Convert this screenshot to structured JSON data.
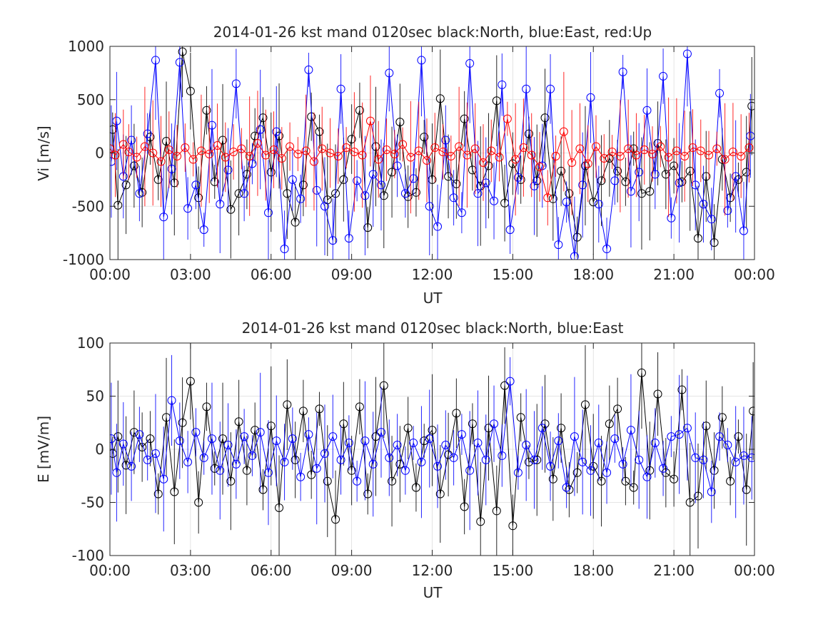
{
  "chart_data": [
    {
      "type": "line",
      "title": "2014-01-26 kst mand 0120sec black:North, blue:East, red:Up",
      "xlabel": "UT",
      "ylabel": "Vi [m/s]",
      "xlim": [
        0,
        24
      ],
      "ylim": [
        -1000,
        1000
      ],
      "xticks": [
        0,
        3,
        6,
        9,
        12,
        15,
        18,
        21,
        24
      ],
      "xtick_labels": [
        "00:00",
        "03:00",
        "06:00",
        "09:00",
        "12:00",
        "15:00",
        "18:00",
        "21:00",
        "00:00"
      ],
      "yticks": [
        1000,
        500,
        0,
        -500,
        -1000
      ],
      "ytick_labels": [
        "1000",
        "500",
        "0",
        "-500",
        "-1000"
      ],
      "grid": true,
      "legend": "none",
      "series": [
        {
          "color": "#000000",
          "marker": "circle",
          "x": [
            0.1,
            0.3,
            0.6,
            0.9,
            1.2,
            1.5,
            1.8,
            2.1,
            2.4,
            2.7,
            3.0,
            3.3,
            3.6,
            3.9,
            4.2,
            4.5,
            4.8,
            5.1,
            5.4,
            5.7,
            6.0,
            6.3,
            6.6,
            6.9,
            7.2,
            7.5,
            7.8,
            8.1,
            8.4,
            8.7,
            9.0,
            9.3,
            9.6,
            9.9,
            10.2,
            10.5,
            10.8,
            11.1,
            11.4,
            11.7,
            12.0,
            12.3,
            12.6,
            12.9,
            13.2,
            13.5,
            13.8,
            14.1,
            14.4,
            14.7,
            15.0,
            15.3,
            15.6,
            15.9,
            16.2,
            16.5,
            16.8,
            17.1,
            17.4,
            17.7,
            18.0,
            18.3,
            18.6,
            18.9,
            19.2,
            19.5,
            19.8,
            20.1,
            20.4,
            20.7,
            21.0,
            21.3,
            21.6,
            21.9,
            22.2,
            22.5,
            22.8,
            23.1,
            23.4,
            23.7,
            23.9
          ],
          "y": [
            220,
            -490,
            -300,
            -120,
            -370,
            150,
            -250,
            110,
            -280,
            950,
            580,
            -420,
            400,
            -270,
            120,
            -530,
            -380,
            -200,
            160,
            330,
            -180,
            160,
            -380,
            -650,
            -300,
            340,
            200,
            -440,
            -380,
            -250,
            130,
            400,
            -700,
            60,
            -400,
            -180,
            290,
            -410,
            -370,
            150,
            -250,
            510,
            -220,
            -290,
            320,
            -160,
            -310,
            -120,
            490,
            -470,
            -100,
            -250,
            180,
            -260,
            330,
            -430,
            -170,
            -380,
            -790,
            -120,
            -460,
            -260,
            -50,
            -170,
            -270,
            40,
            -380,
            -360,
            90,
            -200,
            -120,
            -270,
            -170,
            -800,
            -220,
            -840,
            -60,
            -420,
            -250,
            -180,
            440
          ]
        },
        {
          "color": "#0000ff",
          "marker": "circle",
          "x": [
            0.05,
            0.25,
            0.5,
            0.8,
            1.1,
            1.4,
            1.7,
            2.0,
            2.3,
            2.6,
            2.9,
            3.2,
            3.5,
            3.8,
            4.1,
            4.4,
            4.7,
            5.0,
            5.3,
            5.6,
            5.9,
            6.2,
            6.5,
            6.8,
            7.1,
            7.4,
            7.7,
            8.0,
            8.3,
            8.6,
            8.9,
            9.2,
            9.5,
            9.8,
            10.1,
            10.4,
            10.7,
            11.0,
            11.3,
            11.6,
            11.9,
            12.2,
            12.5,
            12.8,
            13.1,
            13.4,
            13.7,
            14.0,
            14.3,
            14.6,
            14.9,
            15.2,
            15.5,
            15.8,
            16.1,
            16.4,
            16.7,
            17.0,
            17.3,
            17.6,
            17.9,
            18.2,
            18.5,
            18.8,
            19.1,
            19.4,
            19.7,
            20.0,
            20.3,
            20.6,
            20.9,
            21.2,
            21.5,
            21.8,
            22.1,
            22.4,
            22.7,
            23.0,
            23.3,
            23.6,
            23.85
          ],
          "y": [
            -80,
            300,
            -220,
            120,
            -380,
            180,
            870,
            -600,
            -150,
            850,
            -520,
            -300,
            -720,
            260,
            -480,
            -160,
            650,
            -380,
            -100,
            220,
            -560,
            200,
            -900,
            -250,
            -430,
            780,
            -350,
            -500,
            -820,
            600,
            -800,
            -260,
            -400,
            -200,
            -300,
            750,
            -120,
            -380,
            -240,
            870,
            -500,
            -690,
            120,
            -420,
            -560,
            840,
            -380,
            -280,
            -450,
            640,
            -720,
            -230,
            600,
            -310,
            -120,
            600,
            -860,
            -460,
            -970,
            -300,
            520,
            -480,
            -900,
            -260,
            760,
            -360,
            -180,
            400,
            -200,
            720,
            -610,
            -280,
            930,
            -300,
            -480,
            -620,
            560,
            -540,
            -220,
            -730,
            160
          ]
        },
        {
          "color": "#ff0000",
          "marker": "circle",
          "x": [
            0.0,
            0.2,
            0.5,
            0.7,
            1.0,
            1.3,
            1.6,
            1.9,
            2.2,
            2.5,
            2.8,
            3.1,
            3.4,
            3.7,
            4.0,
            4.3,
            4.6,
            4.9,
            5.2,
            5.5,
            5.8,
            6.1,
            6.4,
            6.7,
            7.0,
            7.3,
            7.6,
            7.9,
            8.2,
            8.5,
            8.8,
            9.1,
            9.4,
            9.7,
            10.0,
            10.3,
            10.6,
            10.9,
            11.2,
            11.5,
            11.8,
            12.1,
            12.4,
            12.7,
            13.0,
            13.3,
            13.6,
            13.9,
            14.2,
            14.5,
            14.8,
            15.1,
            15.4,
            15.7,
            16.0,
            16.3,
            16.6,
            16.9,
            17.2,
            17.5,
            17.8,
            18.1,
            18.4,
            18.7,
            19.0,
            19.3,
            19.6,
            19.9,
            20.2,
            20.5,
            20.8,
            21.1,
            21.4,
            21.7,
            22.0,
            22.3,
            22.6,
            22.9,
            23.2,
            23.5,
            23.8
          ],
          "y": [
            40,
            -20,
            80,
            10,
            -40,
            60,
            0,
            -80,
            30,
            -30,
            50,
            -60,
            20,
            -10,
            70,
            -40,
            10,
            40,
            -30,
            90,
            -20,
            30,
            -50,
            60,
            -10,
            20,
            -80,
            40,
            0,
            -30,
            50,
            10,
            -20,
            300,
            -60,
            30,
            -10,
            80,
            -40,
            20,
            -70,
            50,
            10,
            -30,
            60,
            -20,
            40,
            -90,
            20,
            -40,
            320,
            -60,
            50,
            -20,
            -130,
            -420,
            -30,
            200,
            -90,
            40,
            -100,
            60,
            -50,
            10,
            -30,
            40,
            -20,
            30,
            -10,
            60,
            -40,
            20,
            -30,
            50,
            20,
            -20,
            40,
            -60,
            10,
            -30,
            50
          ]
        }
      ]
    },
    {
      "type": "line",
      "title": "2014-01-26 kst mand 0120sec black:North, blue:East",
      "xlabel": "UT",
      "ylabel": "E [mV/m]",
      "xlim": [
        0,
        24
      ],
      "ylim": [
        -100,
        100
      ],
      "xticks": [
        0,
        3,
        6,
        9,
        12,
        15,
        18,
        21,
        24
      ],
      "xtick_labels": [
        "00:00",
        "03:00",
        "06:00",
        "09:00",
        "12:00",
        "15:00",
        "18:00",
        "21:00",
        "00:00"
      ],
      "yticks": [
        100,
        50,
        0,
        -50,
        -100
      ],
      "ytick_labels": [
        "100",
        "50",
        "0",
        "-50",
        "-100"
      ],
      "grid": true,
      "legend": "none",
      "series": [
        {
          "color": "#000000",
          "marker": "circle",
          "x": [
            0.1,
            0.3,
            0.6,
            0.9,
            1.2,
            1.5,
            1.8,
            2.1,
            2.4,
            2.7,
            3.0,
            3.3,
            3.6,
            3.9,
            4.2,
            4.5,
            4.8,
            5.1,
            5.4,
            5.7,
            6.0,
            6.3,
            6.6,
            6.9,
            7.2,
            7.5,
            7.8,
            8.1,
            8.4,
            8.7,
            9.0,
            9.3,
            9.6,
            9.9,
            10.2,
            10.5,
            10.8,
            11.1,
            11.4,
            11.7,
            12.0,
            12.3,
            12.6,
            12.9,
            13.2,
            13.5,
            13.8,
            14.1,
            14.4,
            14.7,
            15.0,
            15.3,
            15.6,
            15.9,
            16.2,
            16.5,
            16.8,
            17.1,
            17.4,
            17.7,
            18.0,
            18.3,
            18.6,
            18.9,
            19.2,
            19.5,
            19.8,
            20.1,
            20.4,
            20.7,
            21.0,
            21.3,
            21.6,
            21.9,
            22.2,
            22.5,
            22.8,
            23.1,
            23.4,
            23.7,
            23.95
          ],
          "y": [
            -4,
            12,
            -15,
            16,
            2,
            10,
            -42,
            30,
            -40,
            25,
            64,
            -50,
            40,
            -18,
            10,
            -30,
            26,
            -20,
            18,
            -38,
            22,
            -55,
            42,
            -10,
            36,
            -24,
            38,
            -30,
            -66,
            24,
            -20,
            40,
            -42,
            12,
            60,
            -30,
            -14,
            20,
            -36,
            8,
            18,
            -42,
            -5,
            34,
            -54,
            24,
            -68,
            20,
            -58,
            60,
            -72,
            30,
            -12,
            -10,
            24,
            -28,
            20,
            -38,
            -22,
            42,
            -16,
            -30,
            24,
            38,
            -30,
            -36,
            72,
            -20,
            52,
            -22,
            -28,
            56,
            -50,
            -44,
            22,
            -20,
            30,
            -30,
            12,
            -38,
            36
          ]
        },
        {
          "color": "#0000ff",
          "marker": "circle",
          "x": [
            0.05,
            0.25,
            0.5,
            0.8,
            1.1,
            1.4,
            1.7,
            2.0,
            2.3,
            2.6,
            2.9,
            3.2,
            3.5,
            3.8,
            4.1,
            4.4,
            4.7,
            5.0,
            5.3,
            5.6,
            5.9,
            6.2,
            6.5,
            6.8,
            7.1,
            7.4,
            7.7,
            8.0,
            8.3,
            8.6,
            8.9,
            9.2,
            9.5,
            9.8,
            10.1,
            10.4,
            10.7,
            11.0,
            11.3,
            11.6,
            11.9,
            12.2,
            12.5,
            12.8,
            13.1,
            13.4,
            13.7,
            14.0,
            14.3,
            14.6,
            14.9,
            15.2,
            15.5,
            15.8,
            16.1,
            16.4,
            16.7,
            17.0,
            17.3,
            17.6,
            17.9,
            18.2,
            18.5,
            18.8,
            19.1,
            19.4,
            19.7,
            20.0,
            20.3,
            20.6,
            20.9,
            21.2,
            21.5,
            21.8,
            22.1,
            22.4,
            22.7,
            23.0,
            23.3,
            23.6,
            23.9
          ],
          "y": [
            10,
            -22,
            5,
            -16,
            14,
            -10,
            -4,
            -28,
            46,
            8,
            -12,
            16,
            -8,
            10,
            -20,
            4,
            -14,
            12,
            -6,
            16,
            -22,
            8,
            -12,
            10,
            -26,
            14,
            -18,
            -4,
            12,
            -10,
            6,
            -30,
            8,
            -14,
            16,
            -8,
            4,
            -20,
            6,
            -12,
            10,
            -16,
            4,
            -8,
            14,
            -20,
            6,
            -10,
            24,
            -6,
            64,
            -22,
            4,
            -10,
            20,
            -16,
            8,
            -36,
            12,
            -12,
            -20,
            6,
            -22,
            10,
            -14,
            18,
            -10,
            -26,
            6,
            -18,
            12,
            14,
            20,
            -8,
            -10,
            -40,
            12,
            4,
            -12,
            -6,
            -8
          ]
        }
      ]
    }
  ]
}
